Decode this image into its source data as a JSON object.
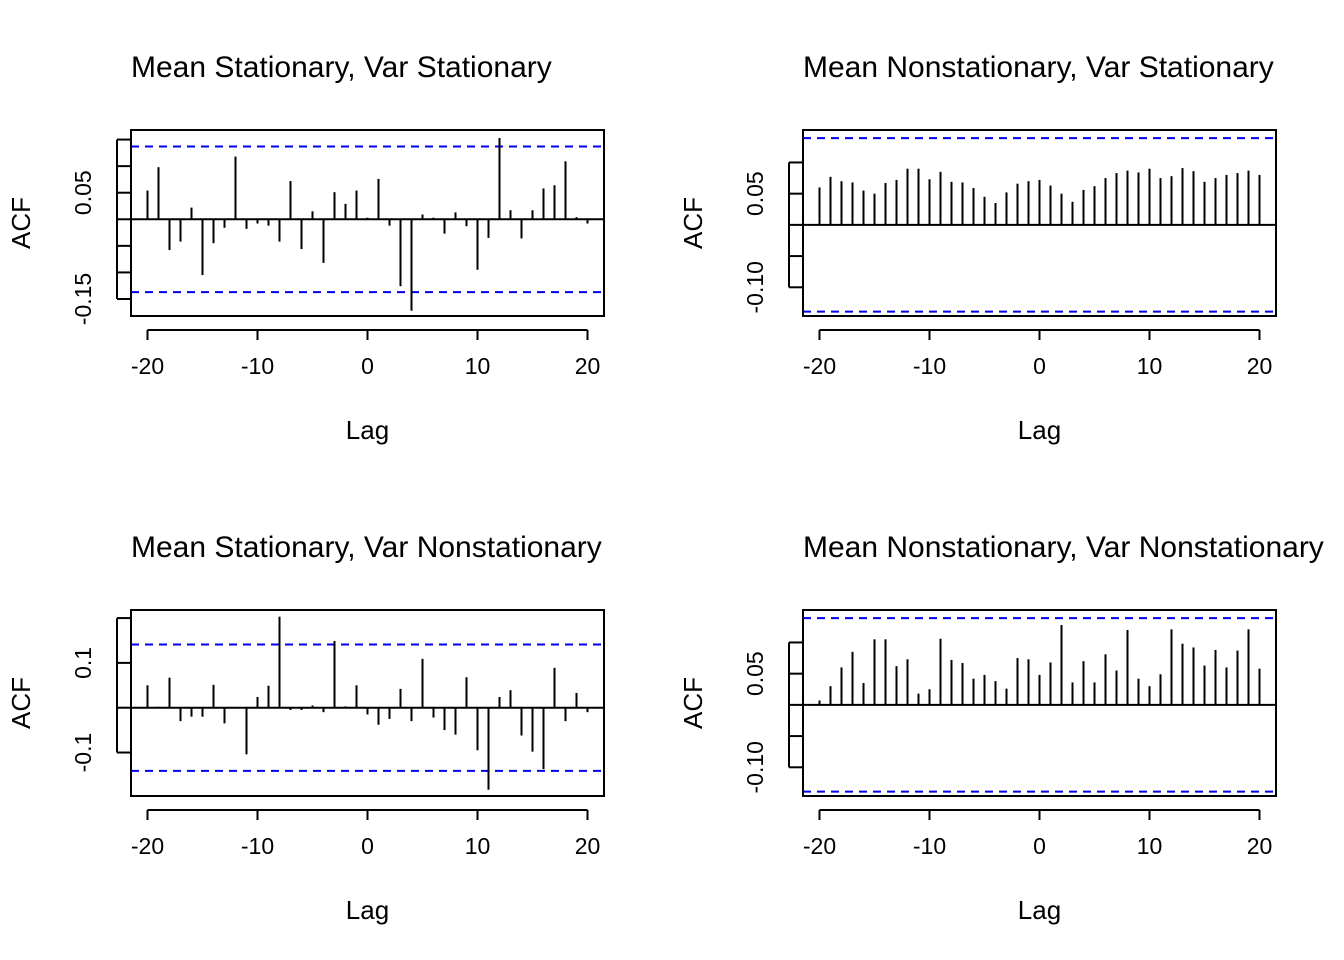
{
  "chart_data": [
    {
      "type": "acf",
      "title": "Mean Stationary, Var Stationary",
      "xlabel": "Lag",
      "ylabel": "ACF",
      "xlim": [
        -21.5,
        21.5
      ],
      "ylim": [
        -0.182,
        0.168
      ],
      "xticks": [
        -20,
        -10,
        0,
        10,
        20
      ],
      "xtick_labels": [
        "-20",
        "-10",
        "0",
        "10",
        "20"
      ],
      "yticks": [
        -0.15,
        -0.1,
        -0.05,
        0.0,
        0.05,
        0.1,
        0.15
      ],
      "ytick_labels": [
        "-0.15",
        "",
        "",
        "",
        "0.05",
        "",
        ""
      ],
      "conf_bound": 0.137,
      "lags": [
        -20,
        -19,
        -18,
        -17,
        -16,
        -15,
        -14,
        -13,
        -12,
        -11,
        -10,
        -9,
        -8,
        -7,
        -6,
        -5,
        -4,
        -3,
        -2,
        -1,
        0,
        1,
        2,
        3,
        4,
        5,
        6,
        7,
        8,
        9,
        10,
        11,
        12,
        13,
        14,
        15,
        16,
        17,
        18,
        19,
        20
      ],
      "values": [
        0.054,
        0.098,
        -0.058,
        -0.042,
        0.022,
        -0.105,
        -0.045,
        -0.016,
        0.118,
        -0.018,
        -0.008,
        -0.012,
        -0.042,
        0.072,
        -0.056,
        0.015,
        -0.082,
        0.051,
        0.029,
        0.054,
        0.003,
        0.076,
        -0.012,
        -0.126,
        -0.172,
        0.009,
        0.003,
        -0.027,
        0.013,
        -0.013,
        -0.095,
        -0.035,
        0.153,
        0.017,
        -0.036,
        0.017,
        0.058,
        0.064,
        0.109,
        0.004,
        -0.008
      ],
      "colors": {
        "bar": "#000000",
        "conf": "#0000ee",
        "zero": "#000000"
      }
    },
    {
      "type": "acf",
      "title": "Mean Nonstationary, Var Stationary",
      "xlabel": "Lag",
      "ylabel": "ACF",
      "xlim": [
        -21.5,
        21.5
      ],
      "ylim": [
        -0.146,
        0.152
      ],
      "xticks": [
        -20,
        -10,
        0,
        10,
        20
      ],
      "xtick_labels": [
        "-20",
        "-10",
        "0",
        "10",
        "20"
      ],
      "yticks": [
        -0.1,
        -0.05,
        0.0,
        0.05,
        0.1
      ],
      "ytick_labels": [
        "-0.10",
        "",
        "",
        "0.05",
        ""
      ],
      "conf_bound": 0.139,
      "lags": [
        -20,
        -19,
        -18,
        -17,
        -16,
        -15,
        -14,
        -13,
        -12,
        -11,
        -10,
        -9,
        -8,
        -7,
        -6,
        -5,
        -4,
        -3,
        -2,
        -1,
        0,
        1,
        2,
        3,
        4,
        5,
        6,
        7,
        8,
        9,
        10,
        11,
        12,
        13,
        14,
        15,
        16,
        17,
        18,
        19,
        20
      ],
      "values": [
        0.06,
        0.077,
        0.07,
        0.068,
        0.055,
        0.05,
        0.067,
        0.072,
        0.09,
        0.09,
        0.073,
        0.085,
        0.069,
        0.068,
        0.059,
        0.045,
        0.035,
        0.052,
        0.066,
        0.07,
        0.072,
        0.063,
        0.05,
        0.037,
        0.056,
        0.062,
        0.075,
        0.083,
        0.087,
        0.084,
        0.09,
        0.075,
        0.078,
        0.091,
        0.086,
        0.069,
        0.075,
        0.08,
        0.083,
        0.087,
        0.08
      ],
      "colors": {
        "bar": "#000000",
        "conf": "#0000ee",
        "zero": "#000000"
      }
    },
    {
      "type": "acf",
      "title": "Mean Stationary, Var Nonstationary",
      "xlabel": "Lag",
      "ylabel": "ACF",
      "xlim": [
        -21.5,
        21.5
      ],
      "ylim": [
        -0.197,
        0.218
      ],
      "xticks": [
        -20,
        -10,
        0,
        10,
        20
      ],
      "xtick_labels": [
        "-20",
        "-10",
        "0",
        "10",
        "20"
      ],
      "yticks": [
        -0.1,
        0.0,
        0.1,
        0.2
      ],
      "ytick_labels": [
        "-0.1",
        "",
        "0.1",
        ""
      ],
      "conf_bound": 0.141,
      "lags": [
        -20,
        -19,
        -18,
        -17,
        -16,
        -15,
        -14,
        -13,
        -12,
        -11,
        -10,
        -9,
        -8,
        -7,
        -6,
        -5,
        -4,
        -3,
        -2,
        -1,
        0,
        1,
        2,
        3,
        4,
        5,
        6,
        7,
        8,
        9,
        10,
        11,
        12,
        13,
        14,
        15,
        16,
        17,
        18,
        19,
        20
      ],
      "values": [
        0.05,
        0.002,
        0.067,
        -0.03,
        -0.02,
        -0.02,
        0.051,
        -0.035,
        0.0,
        -0.104,
        0.024,
        0.049,
        0.203,
        -0.005,
        -0.005,
        0.005,
        -0.01,
        0.149,
        0.003,
        0.05,
        -0.015,
        -0.038,
        -0.025,
        0.042,
        -0.03,
        0.109,
        -0.022,
        -0.05,
        -0.06,
        0.068,
        -0.095,
        -0.183,
        0.024,
        0.039,
        -0.062,
        -0.098,
        -0.137,
        0.089,
        -0.03,
        0.033,
        -0.01
      ],
      "colors": {
        "bar": "#000000",
        "conf": "#0000ee",
        "zero": "#000000"
      }
    },
    {
      "type": "acf",
      "title": "Mean Nonstationary, Var Nonstationary",
      "xlabel": "Lag",
      "ylabel": "ACF",
      "xlim": [
        -21.5,
        21.5
      ],
      "ylim": [
        -0.146,
        0.152
      ],
      "xticks": [
        -20,
        -10,
        0,
        10,
        20
      ],
      "xtick_labels": [
        "-20",
        "-10",
        "0",
        "10",
        "20"
      ],
      "yticks": [
        -0.1,
        -0.05,
        0.0,
        0.05,
        0.1
      ],
      "ytick_labels": [
        "-0.10",
        "",
        "",
        "0.05",
        ""
      ],
      "conf_bound": 0.139,
      "lags": [
        -20,
        -19,
        -18,
        -17,
        -16,
        -15,
        -14,
        -13,
        -12,
        -11,
        -10,
        -9,
        -8,
        -7,
        -6,
        -5,
        -4,
        -3,
        -2,
        -1,
        0,
        1,
        2,
        3,
        4,
        5,
        6,
        7,
        8,
        9,
        10,
        11,
        12,
        13,
        14,
        15,
        16,
        17,
        18,
        19,
        20
      ],
      "values": [
        0.007,
        0.03,
        0.06,
        0.085,
        0.035,
        0.105,
        0.105,
        0.062,
        0.073,
        0.018,
        0.025,
        0.106,
        0.072,
        0.067,
        0.042,
        0.048,
        0.038,
        0.026,
        0.075,
        0.073,
        0.048,
        0.068,
        0.128,
        0.036,
        0.07,
        0.036,
        0.081,
        0.055,
        0.12,
        0.042,
        0.03,
        0.049,
        0.121,
        0.098,
        0.092,
        0.063,
        0.088,
        0.06,
        0.087,
        0.121,
        0.058
      ],
      "colors": {
        "bar": "#000000",
        "conf": "#0000ee",
        "zero": "#000000"
      }
    }
  ]
}
